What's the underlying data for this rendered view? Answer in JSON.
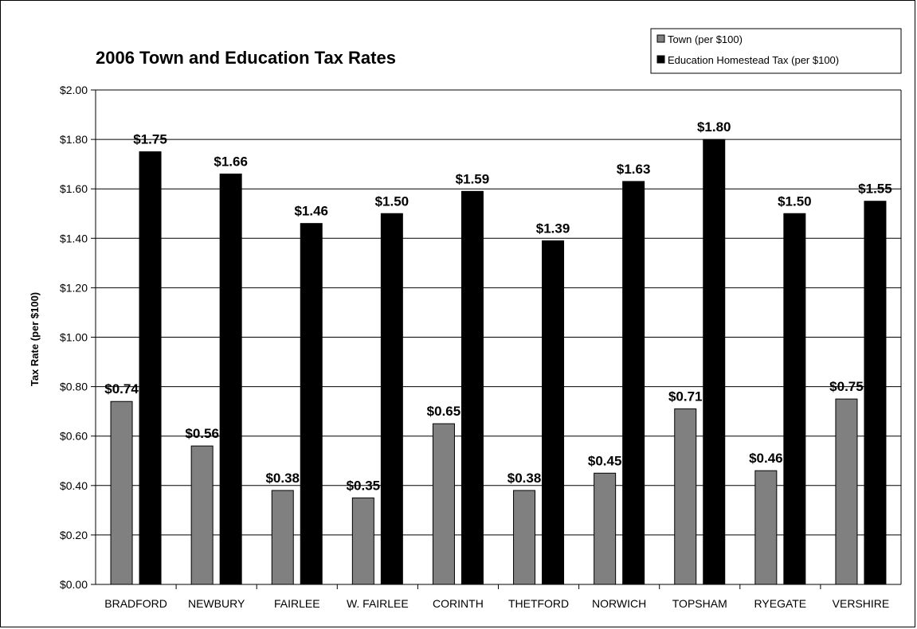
{
  "chart_data": {
    "type": "bar",
    "title": "2006 Town and Education Tax Rates",
    "ylabel": "Tax Rate (per $100)",
    "xlabel": "",
    "ylim": [
      0,
      2.0
    ],
    "ytick_step": 0.2,
    "yticks": [
      "$0.00",
      "$0.20",
      "$0.40",
      "$0.60",
      "$0.80",
      "$1.00",
      "$1.20",
      "$1.40",
      "$1.60",
      "$1.80",
      "$2.00"
    ],
    "grid": true,
    "legend_position": "top-right",
    "categories": [
      "BRADFORD",
      "NEWBURY",
      "FAIRLEE",
      "W. FAIRLEE",
      "CORINTH",
      "THETFORD",
      "NORWICH",
      "TOPSHAM",
      "RYEGATE",
      "VERSHIRE"
    ],
    "series": [
      {
        "name": "Town (per $100)",
        "color": "#808080",
        "values": [
          0.74,
          0.56,
          0.38,
          0.35,
          0.65,
          0.38,
          0.45,
          0.71,
          0.46,
          0.75
        ],
        "labels": [
          "$0.74",
          "$0.56",
          "$0.38",
          "$0.35",
          "$0.65",
          "$0.38",
          "$0.45",
          "$0.71",
          "$0.46",
          "$0.75"
        ]
      },
      {
        "name": "Education Homestead Tax (per $100)",
        "color": "#000000",
        "values": [
          1.75,
          1.66,
          1.46,
          1.5,
          1.59,
          1.39,
          1.63,
          1.8,
          1.5,
          1.55
        ],
        "labels": [
          "$1.75",
          "$1.66",
          "$1.46",
          "$1.50",
          "$1.59",
          "$1.39",
          "$1.63",
          "$1.80",
          "$1.50",
          "$1.55"
        ]
      }
    ]
  }
}
